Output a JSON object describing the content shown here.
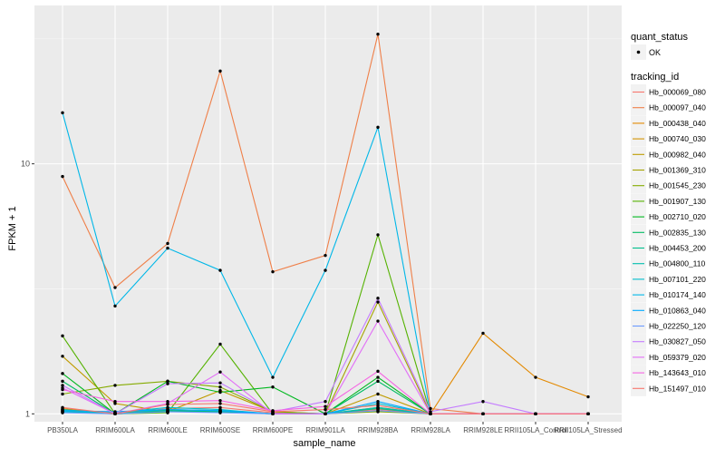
{
  "chart_data": {
    "type": "line",
    "xlabel": "sample_name",
    "ylabel": "FPKM + 1",
    "y_scale": "log10",
    "ylim": [
      0.93,
      43
    ],
    "y_ticks": [
      {
        "value": 1,
        "label": "1"
      },
      {
        "value": 10,
        "label": "10"
      }
    ],
    "grid": true,
    "legend_position": "right",
    "categories": [
      "PB350LA",
      "RRIM600LA",
      "RRIM600LE",
      "RRIM600SE",
      "RRIM600PE",
      "RRIM901LA",
      "RRIM928BA",
      "RRIM928LA",
      "RRIM928LE",
      "RRII105LA_Control",
      "RRII105LA_Stressed"
    ],
    "quant_status": {
      "title": "quant_status",
      "entries": [
        {
          "label": "OK",
          "symbol": "point"
        }
      ]
    },
    "tracking_id_title": "tracking_id",
    "series": [
      {
        "name": "Hb_000069_080",
        "color": "#F8766D",
        "values": [
          1.03,
          1.0,
          1.05,
          1.06,
          1.01,
          1.0,
          1.04,
          1.0,
          1.0,
          1.0,
          1.0
        ]
      },
      {
        "name": "Hb_000097_040",
        "color": "#EF7F48",
        "values": [
          8.9,
          3.2,
          4.8,
          23.5,
          3.7,
          4.3,
          33.0,
          1.05,
          1.0,
          1.0,
          1.0
        ]
      },
      {
        "name": "Hb_000438_040",
        "color": "#E38900",
        "values": [
          1.05,
          1.0,
          1.02,
          1.03,
          1.0,
          1.0,
          1.06,
          1.0,
          2.1,
          1.4,
          1.17
        ]
      },
      {
        "name": "Hb_000740_030",
        "color": "#D39200",
        "values": [
          1.02,
          1.01,
          1.03,
          1.02,
          1.0,
          1.0,
          1.05,
          1.0,
          1.0,
          1.0,
          1.0
        ]
      },
      {
        "name": "Hb_000982_040",
        "color": "#BF9B00",
        "values": [
          1.7,
          1.1,
          1.02,
          1.24,
          1.02,
          1.0,
          1.2,
          1.0,
          1.0,
          1.0,
          1.0
        ]
      },
      {
        "name": "Hb_001369_310",
        "color": "#A5A300",
        "values": [
          1.04,
          1.0,
          1.02,
          1.02,
          1.0,
          1.0,
          2.8,
          1.0,
          1.0,
          1.0,
          1.0
        ]
      },
      {
        "name": "Hb_001545_230",
        "color": "#85AB00",
        "values": [
          1.2,
          1.3,
          1.35,
          1.28,
          1.02,
          1.0,
          1.02,
          1.0,
          1.0,
          1.0,
          1.0
        ]
      },
      {
        "name": "Hb_001907_130",
        "color": "#54B200",
        "values": [
          2.05,
          1.0,
          1.01,
          1.9,
          1.0,
          1.0,
          5.2,
          1.0,
          1.0,
          1.0,
          1.0
        ]
      },
      {
        "name": "Hb_002710_020",
        "color": "#00B81F",
        "values": [
          1.45,
          1.0,
          1.35,
          1.22,
          1.28,
          1.0,
          1.4,
          1.0,
          1.0,
          1.0,
          1.0
        ]
      },
      {
        "name": "Hb_002835_130",
        "color": "#00BC62",
        "values": [
          1.35,
          1.0,
          1.03,
          1.02,
          1.0,
          1.0,
          1.35,
          1.0,
          1.0,
          1.0,
          1.0
        ]
      },
      {
        "name": "Hb_004453_200",
        "color": "#00BE8C",
        "values": [
          1.02,
          1.0,
          1.02,
          1.02,
          1.0,
          1.0,
          1.05,
          1.0,
          1.0,
          1.0,
          1.0
        ]
      },
      {
        "name": "Hb_004800_110",
        "color": "#00BFAE",
        "values": [
          1.04,
          1.0,
          1.04,
          1.03,
          1.0,
          1.0,
          1.06,
          1.0,
          1.0,
          1.0,
          1.0
        ]
      },
      {
        "name": "Hb_007101_220",
        "color": "#00BDCC",
        "values": [
          1.02,
          1.01,
          1.06,
          1.04,
          1.0,
          1.0,
          1.1,
          1.0,
          1.0,
          1.0,
          1.0
        ]
      },
      {
        "name": "Hb_010174_140",
        "color": "#00B7E8",
        "values": [
          16.0,
          2.7,
          4.6,
          3.75,
          1.4,
          3.75,
          14.0,
          1.0,
          1.0,
          1.0,
          1.0
        ]
      },
      {
        "name": "Hb_010863_040",
        "color": "#00A9FF",
        "values": [
          1.03,
          1.02,
          1.04,
          1.03,
          1.0,
          1.0,
          1.12,
          1.0,
          1.0,
          1.0,
          1.0
        ]
      },
      {
        "name": "Hb_022250_120",
        "color": "#6B99FF",
        "values": [
          1.01,
          1.0,
          1.02,
          1.01,
          1.0,
          1.0,
          1.03,
          1.0,
          1.0,
          1.0,
          1.0
        ]
      },
      {
        "name": "Hb_030827_050",
        "color": "#C47BFF",
        "values": [
          1.3,
          1.0,
          1.32,
          1.33,
          1.02,
          1.12,
          2.9,
          1.02,
          1.12,
          1.0,
          1.0
        ]
      },
      {
        "name": "Hb_059379_020",
        "color": "#E26EF7",
        "values": [
          1.27,
          1.0,
          1.1,
          1.47,
          1.0,
          1.0,
          2.35,
          1.0,
          1.0,
          1.0,
          1.0
        ]
      },
      {
        "name": "Hb_143643_010",
        "color": "#F564E3",
        "values": [
          1.25,
          1.12,
          1.12,
          1.13,
          1.03,
          1.07,
          1.48,
          1.0,
          1.0,
          1.0,
          1.0
        ]
      },
      {
        "name": "Hb_151497_010",
        "color": "#F8766D",
        "values": [
          1.06,
          1.0,
          1.09,
          1.1,
          1.02,
          1.04,
          1.08,
          1.0,
          1.0,
          1.0,
          1.0
        ]
      }
    ]
  }
}
